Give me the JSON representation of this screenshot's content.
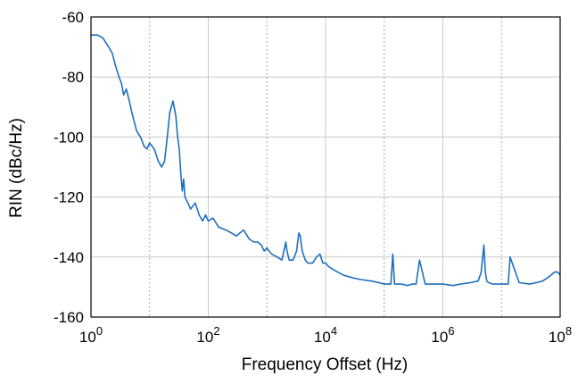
{
  "chart_data": {
    "type": "line",
    "title": "",
    "xlabel": "Frequency Offset (Hz)",
    "ylabel": "RIN (dBc/Hz)",
    "xscale": "log",
    "xlim": [
      1,
      100000000
    ],
    "ylim": [
      -160,
      -60
    ],
    "y_ticks": [
      -160,
      -140,
      -120,
      -100,
      -80,
      -60
    ],
    "y_tick_labels": [
      "-160",
      "-140",
      "-120",
      "-100",
      "-80",
      "-60"
    ],
    "x_ticks": [
      {
        "value": 1,
        "base": "10",
        "exp": "0"
      },
      {
        "value": 100,
        "base": "10",
        "exp": "2"
      },
      {
        "value": 10000,
        "base": "10",
        "exp": "4"
      },
      {
        "value": 1000000,
        "base": "10",
        "exp": "6"
      },
      {
        "value": 100000000,
        "base": "10",
        "exp": "8"
      }
    ],
    "grid": "major solid, minor dotted",
    "legend": "none",
    "colors": {
      "line": "#1f6fc0",
      "grid": "#c8c8c8",
      "axis": "#000000"
    },
    "series": [
      {
        "x": [
          1,
          1.3,
          1.6,
          2,
          2.3,
          2.6,
          3,
          3.3,
          3.6,
          4,
          4.5,
          5,
          6,
          7,
          8,
          9,
          10,
          12,
          14,
          16,
          18,
          20,
          22,
          25,
          28,
          30,
          32,
          34,
          36,
          38,
          40,
          45,
          50,
          60,
          70,
          80,
          90,
          100,
          120,
          150,
          200,
          250,
          300,
          400,
          500,
          600,
          700,
          800,
          900,
          1000,
          1200,
          1500,
          1800,
          2000,
          2100,
          2200,
          2400,
          2800,
          3200,
          3500,
          3700,
          4000,
          4500,
          5000,
          6000,
          7000,
          8000,
          9000,
          10000,
          11000,
          13000,
          16000,
          20000,
          30000,
          40000,
          60000,
          80000,
          100000,
          130000,
          140000,
          150000,
          200000,
          250000,
          300000,
          350000,
          400000,
          500000,
          600000,
          700000,
          800000,
          1000000,
          1500000,
          2000000,
          3000000,
          4000000,
          4500000,
          5000000,
          5300000,
          5600000,
          6000000,
          7000000,
          8000000,
          10000000,
          12000000,
          13000000,
          14000000,
          20000000,
          30000000,
          40000000,
          50000000,
          60000000,
          70000000,
          80000000,
          90000000,
          100000000
        ],
        "y": [
          -66,
          -66,
          -67,
          -70,
          -72,
          -76,
          -80,
          -82,
          -86,
          -84,
          -88,
          -92,
          -98,
          -100,
          -103,
          -104,
          -102,
          -104,
          -108,
          -110,
          -108,
          -100,
          -92,
          -88,
          -93,
          -100,
          -104,
          -112,
          -118,
          -114,
          -120,
          -122,
          -124,
          -122,
          -126,
          -128,
          -126,
          -128,
          -127,
          -130,
          -131,
          -132,
          -133,
          -131,
          -134,
          -135,
          -135,
          -136,
          -138,
          -137,
          -139,
          -140,
          -141,
          -137,
          -135,
          -138,
          -141,
          -141,
          -138,
          -132,
          -133,
          -138,
          -141,
          -142,
          -142,
          -140,
          -139,
          -142,
          -142,
          -143,
          -144,
          -145,
          -146,
          -147,
          -147.5,
          -148,
          -148.5,
          -149,
          -149,
          -139,
          -149,
          -149,
          -149.5,
          -149,
          -149,
          -141,
          -149,
          -149,
          -149,
          -149,
          -149,
          -149.5,
          -149,
          -148.5,
          -148,
          -145,
          -136,
          -145,
          -148,
          -148.5,
          -149,
          -149,
          -149,
          -149,
          -149,
          -140,
          -148.5,
          -149,
          -148.5,
          -148,
          -147,
          -146,
          -145,
          -145,
          -146
        ]
      }
    ]
  }
}
